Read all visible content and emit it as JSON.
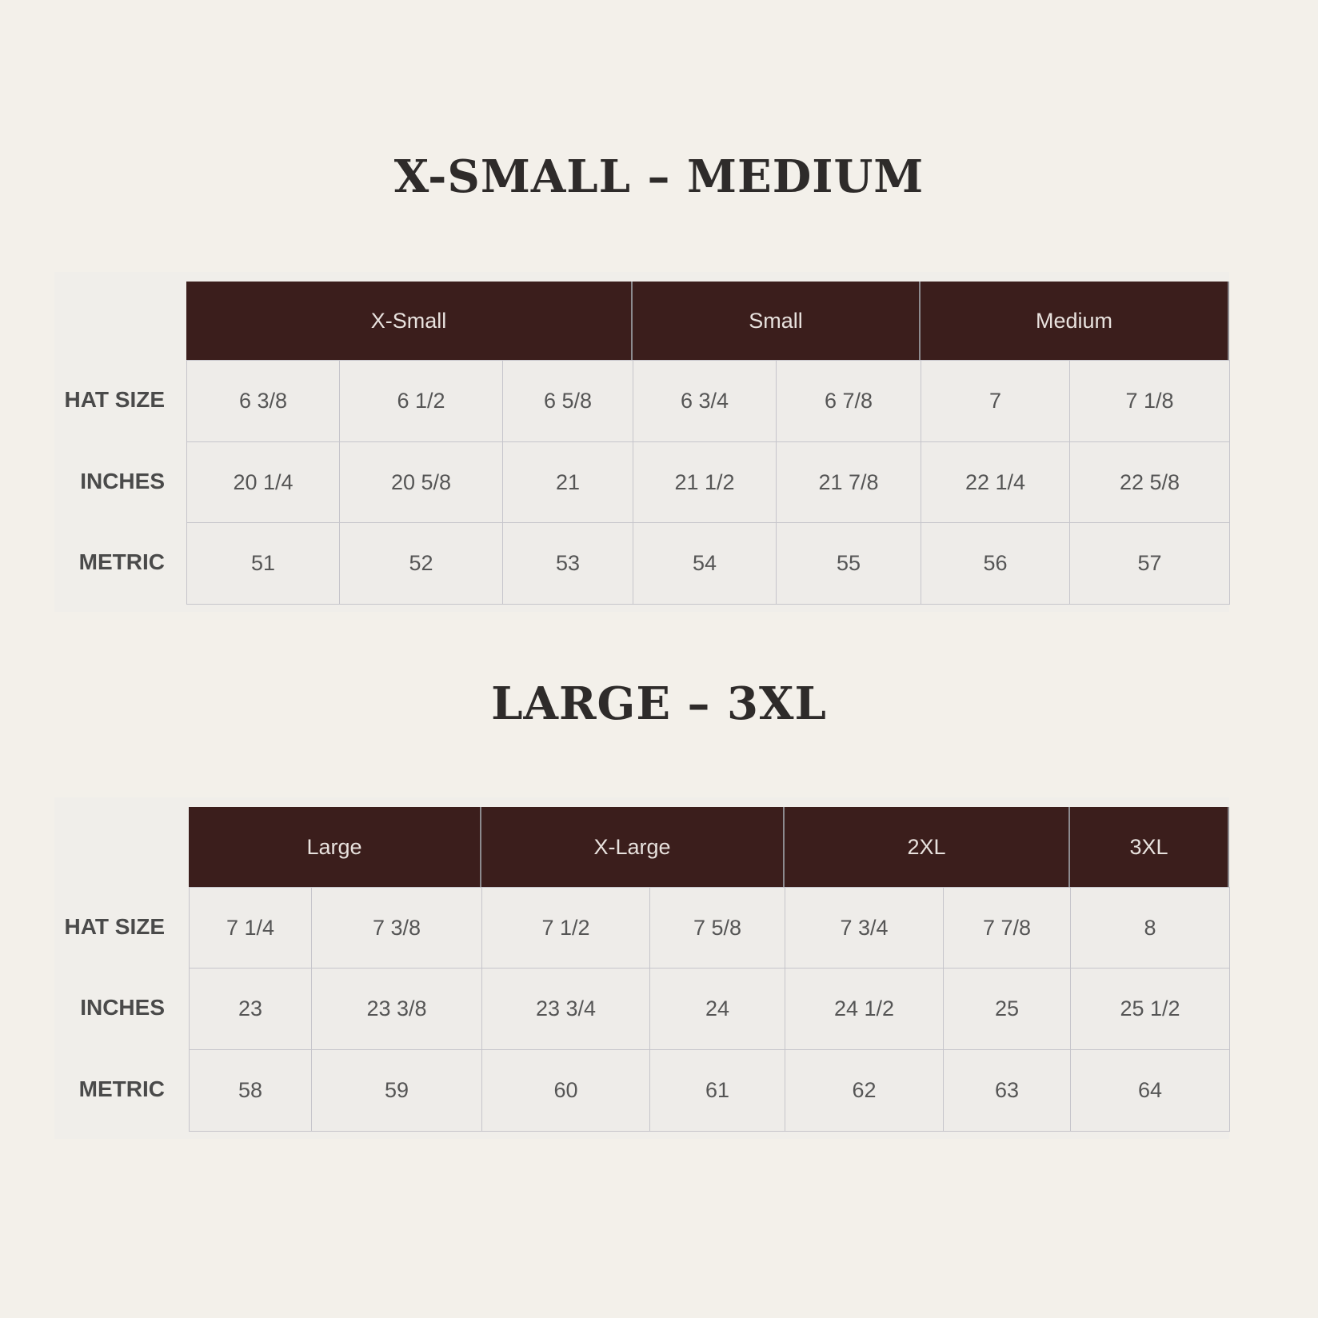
{
  "sections": [
    {
      "title": "X-SMALL – MEDIUM",
      "row_labels": [
        "HAT SIZE",
        "INCHES",
        "METRIC"
      ],
      "groups": [
        {
          "label": "X-Small",
          "span": 3
        },
        {
          "label": "Small",
          "span": 2
        },
        {
          "label": "Medium",
          "span": 2
        }
      ],
      "rows": [
        [
          "6 3/8",
          "6 1/2",
          "6 5/8",
          "6 3/4",
          "6 7/8",
          "7",
          "7 1/8"
        ],
        [
          "20 1/4",
          "20 5/8",
          "21",
          "21 1/2",
          "21 7/8",
          "22 1/4",
          "22 5/8"
        ],
        [
          "51",
          "52",
          "53",
          "54",
          "55",
          "56",
          "57"
        ]
      ]
    },
    {
      "title": "LARGE – 3XL",
      "row_labels": [
        "HAT SIZE",
        "INCHES",
        "METRIC"
      ],
      "groups": [
        {
          "label": "Large",
          "span": 2
        },
        {
          "label": "X-Large",
          "span": 2
        },
        {
          "label": "2XL",
          "span": 2
        },
        {
          "label": "3XL",
          "span": 1
        }
      ],
      "rows": [
        [
          "7 1/4",
          "7 3/8",
          "7 1/2",
          "7 5/8",
          "7 3/4",
          "7 7/8",
          "8"
        ],
        [
          "23",
          "23 3/8",
          "23 3/4",
          "24",
          "24 1/2",
          "25",
          "25 1/2"
        ],
        [
          "58",
          "59",
          "60",
          "61",
          "62",
          "63",
          "64"
        ]
      ]
    }
  ],
  "colors": {
    "background": "#f3f0ea",
    "header": "#3b1e1c",
    "cell": "#eeece9",
    "border": "#c6c5cb"
  }
}
